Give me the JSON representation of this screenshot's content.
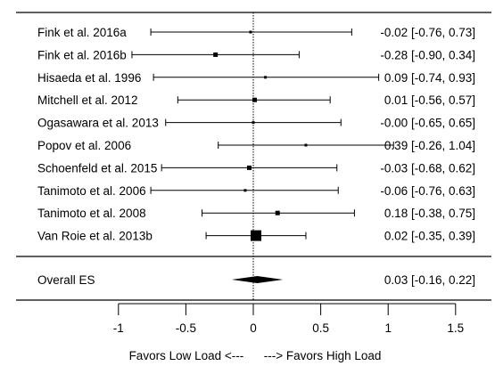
{
  "chart_data": {
    "type": "forest",
    "studies": [
      {
        "label": "Fink et al. 2016a",
        "es": -0.02,
        "lo": -0.76,
        "hi": 0.73,
        "ci_text": "-0.02 [-0.76, 0.73]",
        "weight": 1
      },
      {
        "label": "Fink et al. 2016b",
        "es": -0.28,
        "lo": -0.9,
        "hi": 0.34,
        "ci_text": "-0.28 [-0.90, 0.34]",
        "weight": 2
      },
      {
        "label": "Hisaeda et al. 1996",
        "es": 0.09,
        "lo": -0.74,
        "hi": 0.93,
        "ci_text": "0.09 [-0.74, 0.93]",
        "weight": 1
      },
      {
        "label": "Mitchell et al. 2012",
        "es": 0.01,
        "lo": -0.56,
        "hi": 0.57,
        "ci_text": "0.01 [-0.56, 0.57]",
        "weight": 2
      },
      {
        "label": "Ogasawara et al. 2013",
        "es": -0.0,
        "lo": -0.65,
        "hi": 0.65,
        "ci_text": "-0.00 [-0.65, 0.65]",
        "weight": 1
      },
      {
        "label": "Popov et al. 2006",
        "es": 0.39,
        "lo": -0.26,
        "hi": 1.04,
        "ci_text": "0.39 [-0.26, 1.04]",
        "weight": 1
      },
      {
        "label": "Schoenfeld et al. 2015",
        "es": -0.03,
        "lo": -0.68,
        "hi": 0.62,
        "ci_text": "-0.03 [-0.68, 0.62]",
        "weight": 2
      },
      {
        "label": "Tanimoto et al. 2006",
        "es": -0.06,
        "lo": -0.76,
        "hi": 0.63,
        "ci_text": "-0.06 [-0.76, 0.63]",
        "weight": 1
      },
      {
        "label": "Tanimoto et al. 2008",
        "es": 0.18,
        "lo": -0.38,
        "hi": 0.75,
        "ci_text": "0.18 [-0.38, 0.75]",
        "weight": 2
      },
      {
        "label": "Van Roie et al. 2013b",
        "es": 0.02,
        "lo": -0.35,
        "hi": 0.39,
        "ci_text": "0.02 [-0.35, 0.39]",
        "weight": 6
      }
    ],
    "overall": {
      "label": "Overall ES",
      "es": 0.03,
      "lo": -0.16,
      "hi": 0.22,
      "ci_text": "0.03 [-0.16, 0.22]"
    },
    "x_ticks": [
      -1,
      -0.5,
      0,
      0.5,
      1,
      1.5
    ],
    "xlim": [
      -1,
      1.5
    ],
    "reference_line": 0,
    "xlabel": "Favors Low Load <---      ---> Favors High Load",
    "colors": {
      "marks": "#000000",
      "background": "#ffffff"
    }
  }
}
